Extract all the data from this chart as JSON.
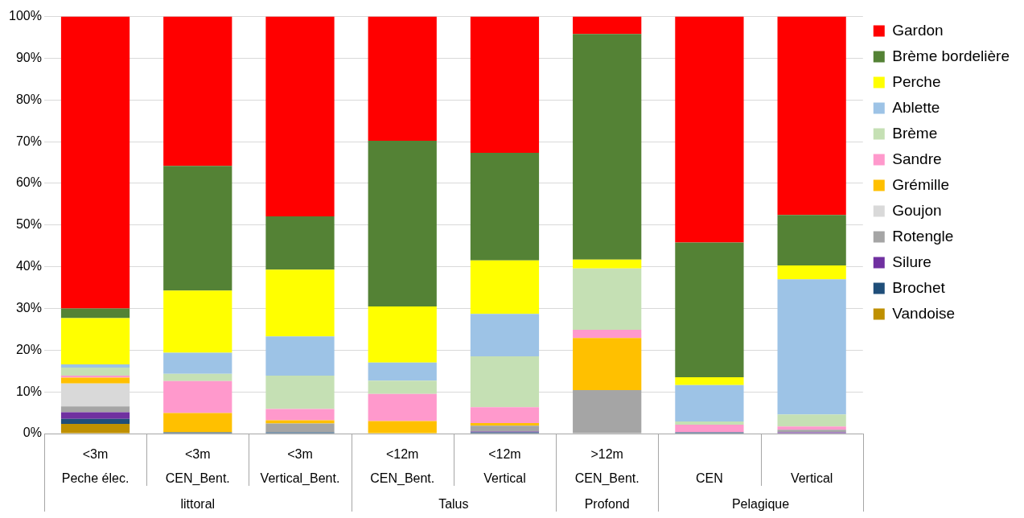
{
  "chart_data": {
    "type": "bar",
    "stacked": true,
    "categories": [
      "<3m\nPeche élec.",
      "<3m\nCEN_Bent.",
      "<3m\nVertical_Bent.",
      "<12m\nCEN_Bent.",
      "<12m\nVertical",
      ">12m\nCEN_Bent.",
      "CEN",
      "Vertical"
    ],
    "annotations": [
      "littoral",
      "Talus",
      "Profond",
      "Pelagique"
    ],
    "series": [
      {
        "name": "Vandoise",
        "color": "#bf9000",
        "values": [
          2.3,
          0,
          0,
          0,
          0,
          0,
          0,
          0
        ]
      },
      {
        "name": "Brochet",
        "color": "#1f4e79",
        "values": [
          1.2,
          0.3,
          0.3,
          0,
          0.3,
          0,
          0.3,
          0
        ]
      },
      {
        "name": "Silure",
        "color": "#7030a0",
        "values": [
          1.6,
          0,
          0,
          0,
          0.2,
          0,
          0,
          0.3
        ]
      },
      {
        "name": "Rotengle",
        "color": "#a5a5a5",
        "values": [
          1.4,
          0,
          2.1,
          0,
          1.4,
          10.4,
          0,
          0.6
        ]
      },
      {
        "name": "Goujon",
        "color": "#d9d9d9",
        "values": [
          5.5,
          0,
          0,
          0,
          0,
          0,
          0,
          0
        ]
      },
      {
        "name": "Grémille",
        "color": "#ffc000",
        "values": [
          1.4,
          4.6,
          0.8,
          3.0,
          0.6,
          12.5,
          0,
          0
        ]
      },
      {
        "name": "Sandre",
        "color": "#ff99cc",
        "values": [
          0.5,
          7.7,
          2.7,
          6.5,
          3.8,
          2.0,
          1.8,
          0.8
        ]
      },
      {
        "name": "Brème",
        "color": "#c5e0b4",
        "values": [
          1.9,
          1.7,
          8.0,
          3.2,
          12.2,
          14.7,
          0.8,
          2.9
        ]
      },
      {
        "name": "Ablette",
        "color": "#9dc3e6",
        "values": [
          0.8,
          5.1,
          9.4,
          4.3,
          10.2,
          0,
          8.7,
          32.4
        ]
      },
      {
        "name": "Perche",
        "color": "#ffff00",
        "values": [
          11.1,
          14.9,
          16.0,
          13.5,
          12.8,
          2.1,
          1.9,
          3.3
        ]
      },
      {
        "name": "Brème bordelière",
        "color": "#548235",
        "values": [
          2.3,
          29.9,
          12.8,
          39.7,
          25.8,
          54.1,
          32.3,
          12.1
        ]
      },
      {
        "name": "Gardon",
        "color": "#ff0000",
        "values": [
          70,
          35.8,
          47.9,
          29.8,
          32.7,
          4.2,
          54.2,
          47.6
        ]
      }
    ],
    "ylim": [
      0,
      100
    ],
    "yticks": [
      {
        "value": 0,
        "label": "0%"
      },
      {
        "value": 10,
        "label": "10%"
      },
      {
        "value": 20,
        "label": "20%"
      },
      {
        "value": 30,
        "label": "30%"
      },
      {
        "value": 40,
        "label": "40%"
      },
      {
        "value": 50,
        "label": "50%"
      },
      {
        "value": 60,
        "label": "60%"
      },
      {
        "value": 70,
        "label": "70%"
      },
      {
        "value": 80,
        "label": "80%"
      },
      {
        "value": 90,
        "label": "90%"
      },
      {
        "value": 100,
        "label": "100%"
      }
    ],
    "grid": "y",
    "legend": "right"
  }
}
